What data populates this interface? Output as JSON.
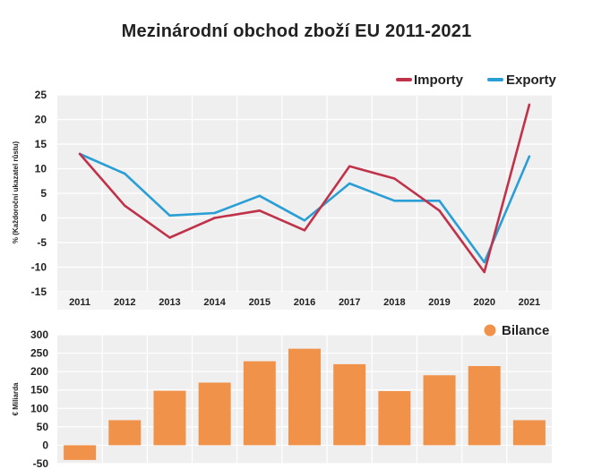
{
  "title": "Mezinárodní obchod zboží EU 2011-2021",
  "colors": {
    "imports": "#c0324a",
    "exports": "#2a9fd6",
    "balance": "#f0924a",
    "panel_bg": "#efefef",
    "grid": "#ffffff"
  },
  "chart_data": [
    {
      "type": "line",
      "title": "Mezinárodní obchod zboží EU 2011-2021",
      "xlabel": "",
      "ylabel": "% (Každoroční ukazatel růstu)",
      "categories": [
        "2011",
        "2012",
        "2013",
        "2014",
        "2015",
        "2016",
        "2017",
        "2018",
        "2019",
        "2020",
        "2021"
      ],
      "ylim": [
        -15,
        25
      ],
      "yticks": [
        25,
        20,
        15,
        10,
        5,
        0,
        -5,
        -10,
        -15
      ],
      "grid": true,
      "legend": "top-right",
      "series": [
        {
          "name": "Importy",
          "color": "#c0324a",
          "values": [
            13,
            2.5,
            -4,
            0,
            1.5,
            -2.5,
            10.5,
            8,
            1.5,
            -11,
            23
          ]
        },
        {
          "name": "Exporty",
          "color": "#2a9fd6",
          "values": [
            13,
            9,
            0.5,
            1,
            4.5,
            -0.5,
            7,
            3.5,
            3.5,
            -9,
            12.5
          ]
        }
      ]
    },
    {
      "type": "bar",
      "ylabel": "€ Miliarda",
      "categories": [
        "2011",
        "2012",
        "2013",
        "2014",
        "2015",
        "2016",
        "2017",
        "2018",
        "2019",
        "2020",
        "2021"
      ],
      "ylim": [
        -50,
        300
      ],
      "yticks": [
        300,
        250,
        200,
        150,
        100,
        50,
        0,
        -50
      ],
      "grid": true,
      "legend": "top-right",
      "series": [
        {
          "name": "Bilance",
          "color": "#f0924a",
          "values": [
            -40,
            68,
            148,
            170,
            228,
            262,
            220,
            147,
            190,
            215,
            68
          ]
        }
      ]
    }
  ]
}
